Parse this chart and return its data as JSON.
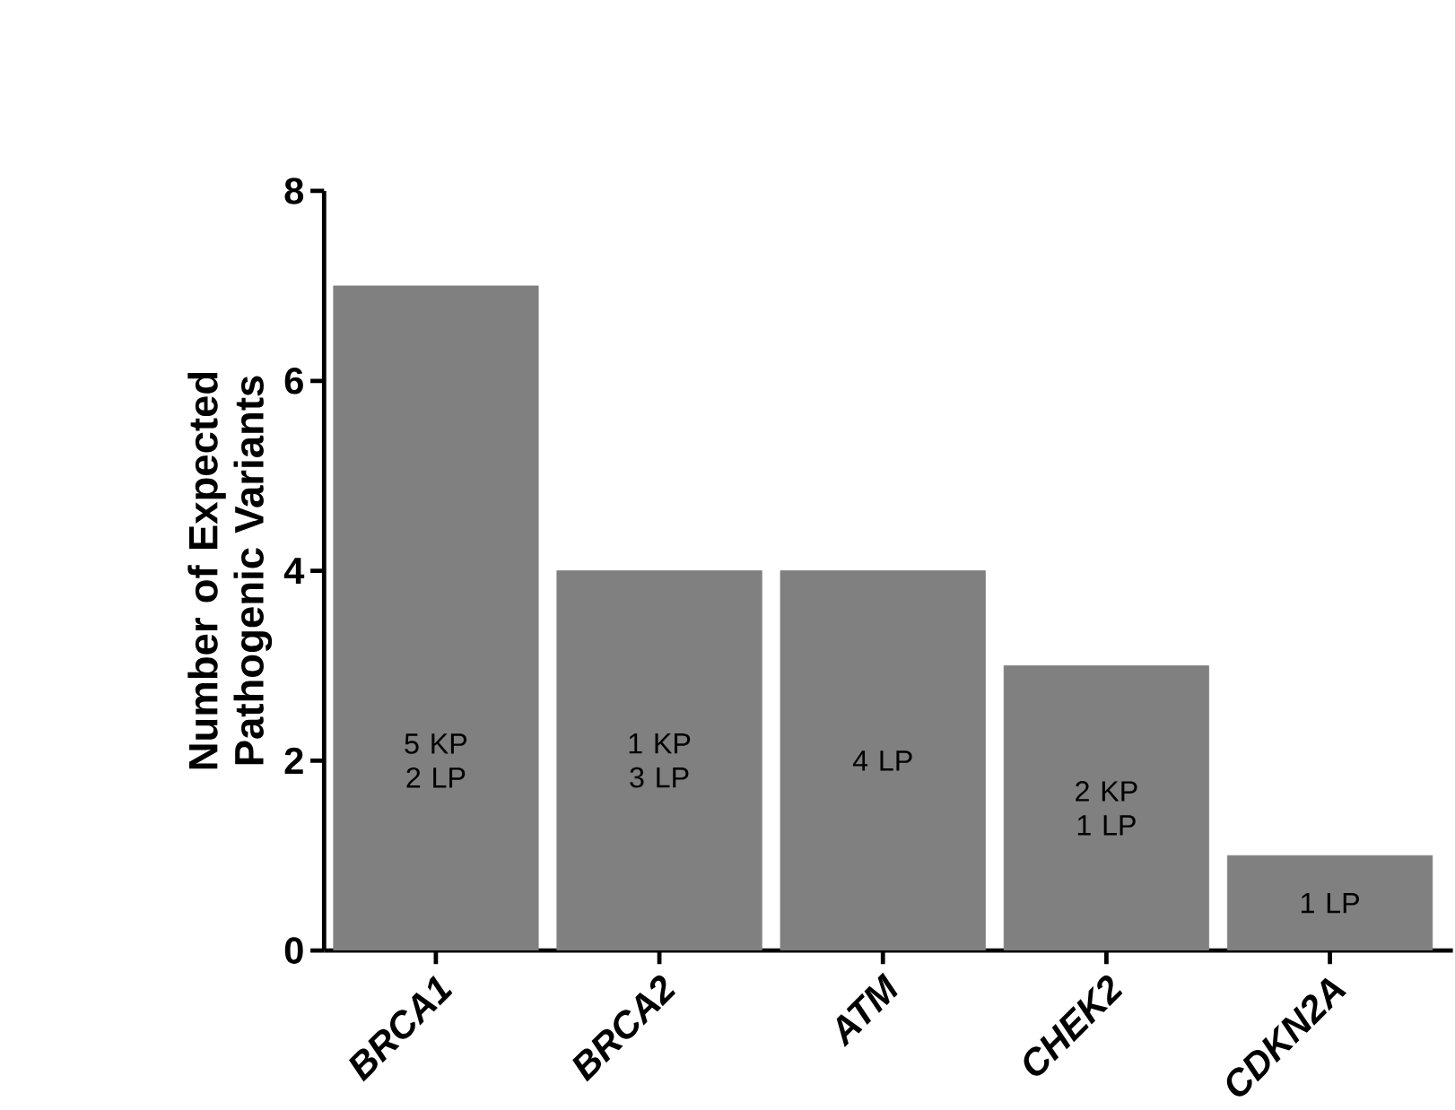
{
  "chart_data": {
    "type": "bar",
    "ylabel": "Number of Expected Pathogenic Variants",
    "categories": [
      "*BRCA1*",
      "*BRCA2*",
      "*ATM*",
      "*CHEK2*",
      "*CDKN2A*"
    ],
    "values": [
      7,
      4,
      4,
      3,
      1
    ],
    "color": "#808080",
    "annotations": [
      "5 KP 2 LP",
      "1 KP 3 LP",
      "4 LP",
      "2 KP 1 LP",
      "1 LP"
    ],
    "ylim": [
      0,
      8
    ],
    "yticks": [
      0,
      2,
      4,
      6,
      8
    ],
    "grid": false
  }
}
